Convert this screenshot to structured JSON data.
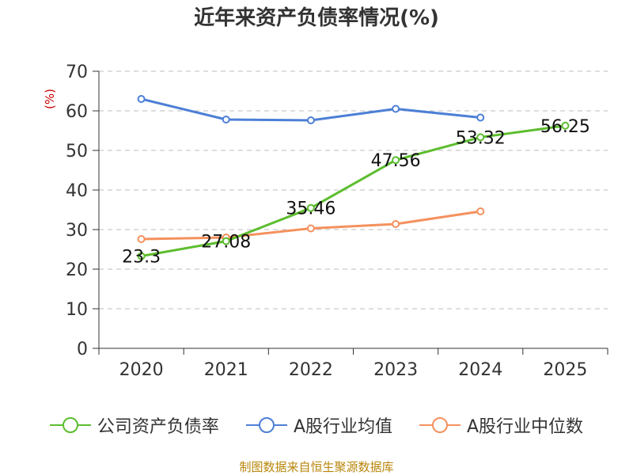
{
  "title": "近年来资产负债率情况(%)",
  "source": "制图数据来自恒生聚源数据库",
  "chart_data": {
    "type": "line",
    "title": "近年来资产负债率情况(%)",
    "ylabel": "(%)",
    "ylim": [
      0,
      70
    ],
    "yticks": [
      0,
      10,
      20,
      30,
      40,
      50,
      60,
      70
    ],
    "categories": [
      "2020",
      "2021",
      "2022",
      "2023",
      "2024",
      "2025"
    ],
    "grid": true,
    "legend_position": "bottom",
    "series": [
      {
        "name": "公司资产负债率",
        "color": "#5cbd2e",
        "values": [
          23.3,
          27.08,
          35.46,
          47.56,
          53.32,
          56.25
        ],
        "labels": [
          "23.3",
          "27.08",
          "35.46",
          "47.56",
          "53.32",
          "56.25"
        ]
      },
      {
        "name": "A股行业均值",
        "color": "#4d7fd6",
        "values": [
          63.0,
          57.8,
          57.6,
          60.5,
          58.3,
          null
        ]
      },
      {
        "name": "A股行业中位数",
        "color": "#f4915e",
        "values": [
          27.6,
          28.0,
          30.3,
          31.4,
          34.6,
          null
        ]
      }
    ]
  }
}
